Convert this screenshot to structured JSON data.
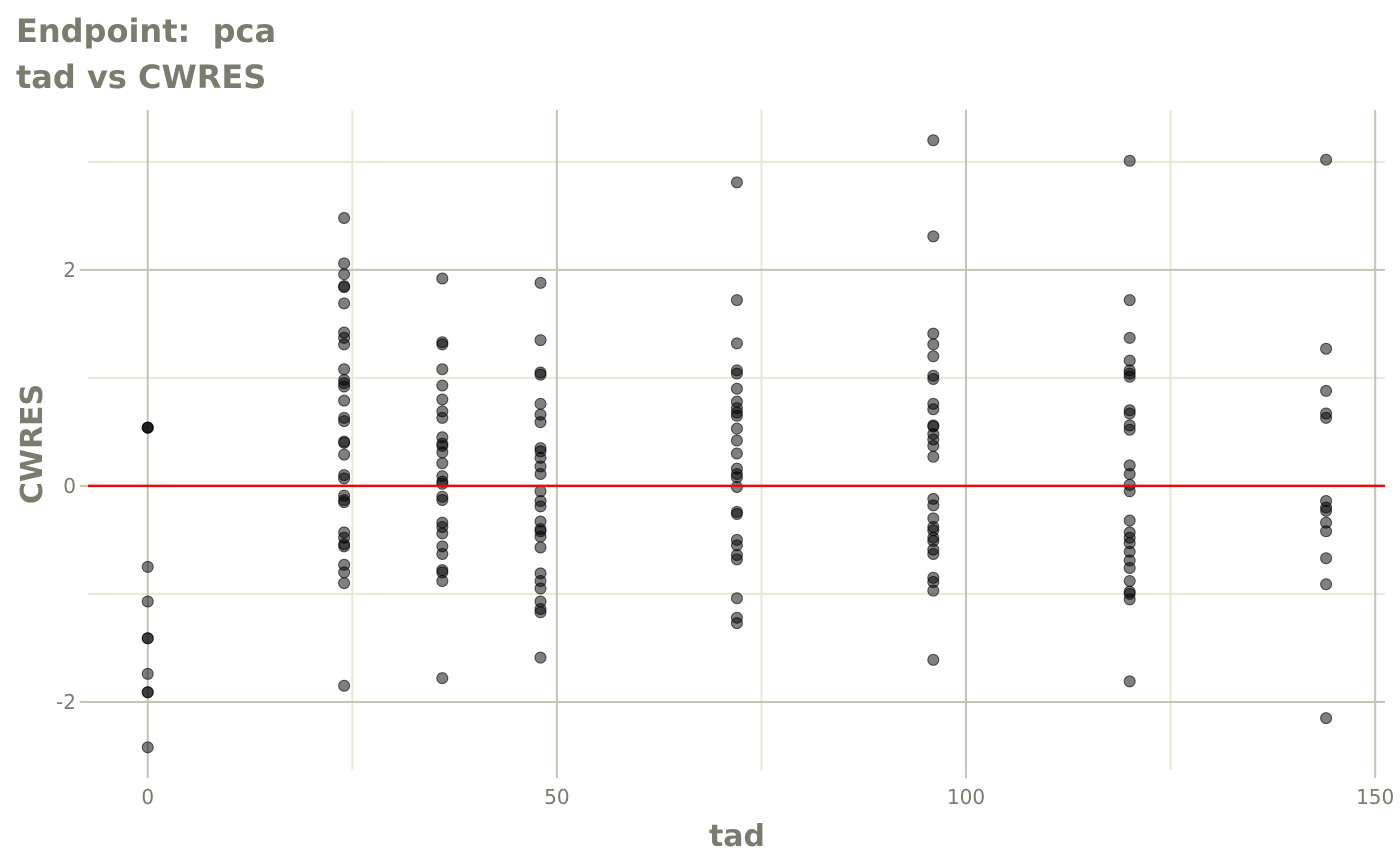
{
  "chart_data": {
    "type": "scatter",
    "title": "Endpoint:  pca",
    "subtitle": "tad vs CWRES",
    "xlabel": "tad",
    "ylabel": "CWRES",
    "xlim": [
      -7.3,
      151.2
    ],
    "ylim": [
      -2.63,
      3.48
    ],
    "xticks": [
      0,
      50,
      100,
      150
    ],
    "yticks": [
      -2,
      0,
      2
    ],
    "grid": true,
    "reference_line": {
      "y": 0,
      "color": "#dd1111"
    },
    "point_color": "#000000",
    "point_opacity": 0.5,
    "points": [
      {
        "x": 0,
        "y": [
          0.54,
          0.54,
          0.54,
          -0.75,
          -1.07,
          -1.41,
          -1.41,
          -1.74,
          -1.91,
          -1.91,
          -2.42
        ]
      },
      {
        "x": 24,
        "y": [
          2.48,
          2.06,
          1.96,
          1.85,
          1.84,
          1.69,
          1.42,
          1.37,
          1.31,
          1.08,
          0.98,
          0.95,
          0.92,
          0.79,
          0.63,
          0.6,
          0.41,
          0.4,
          0.29,
          0.1,
          0.07,
          -0.09,
          -0.13,
          -0.15,
          -0.43,
          -0.48,
          -0.54,
          -0.56,
          -0.73,
          -0.8,
          -0.9,
          -1.85
        ]
      },
      {
        "x": 36,
        "y": [
          1.92,
          1.33,
          1.31,
          1.08,
          0.93,
          0.8,
          0.69,
          0.63,
          0.45,
          0.39,
          0.37,
          0.31,
          0.21,
          0.09,
          0.04,
          0.02,
          -0.1,
          -0.13,
          -0.34,
          -0.38,
          -0.44,
          -0.56,
          -0.63,
          -0.78,
          -0.8,
          -0.88,
          -1.78
        ]
      },
      {
        "x": 48,
        "y": [
          1.88,
          1.35,
          1.05,
          1.03,
          0.76,
          0.66,
          0.59,
          0.35,
          0.32,
          0.26,
          0.18,
          0.11,
          -0.05,
          -0.14,
          -0.19,
          -0.33,
          -0.4,
          -0.42,
          -0.47,
          -0.57,
          -0.81,
          -0.88,
          -0.95,
          -1.07,
          -1.14,
          -1.17,
          -1.59
        ]
      },
      {
        "x": 72,
        "y": [
          2.81,
          1.72,
          1.32,
          1.07,
          1.04,
          0.9,
          0.78,
          0.72,
          0.68,
          0.65,
          0.53,
          0.42,
          0.3,
          0.16,
          0.11,
          0.08,
          -0.01,
          -0.24,
          -0.26,
          -0.5,
          -0.55,
          -0.64,
          -0.68,
          -1.04,
          -1.22,
          -1.27
        ]
      },
      {
        "x": 96,
        "y": [
          3.2,
          2.31,
          1.41,
          1.31,
          1.2,
          1.02,
          0.99,
          0.76,
          0.71,
          0.56,
          0.55,
          0.48,
          0.43,
          0.37,
          0.27,
          -0.12,
          -0.18,
          -0.3,
          -0.38,
          -0.41,
          -0.48,
          -0.51,
          -0.59,
          -0.63,
          -0.85,
          -0.89,
          -0.97,
          -1.61
        ]
      },
      {
        "x": 120,
        "y": [
          3.01,
          1.72,
          1.37,
          1.16,
          1.07,
          1.04,
          1.01,
          0.7,
          0.67,
          0.56,
          0.52,
          0.19,
          0.11,
          0.01,
          -0.05,
          -0.32,
          -0.43,
          -0.48,
          -0.53,
          -0.61,
          -0.69,
          -0.76,
          -0.88,
          -0.98,
          -1.0,
          -1.05,
          -1.81
        ]
      },
      {
        "x": 144,
        "y": [
          3.02,
          1.27,
          0.88,
          0.67,
          0.63,
          -0.14,
          -0.2,
          -0.23,
          -0.34,
          -0.42,
          -0.67,
          -0.91,
          -2.15
        ]
      }
    ]
  }
}
